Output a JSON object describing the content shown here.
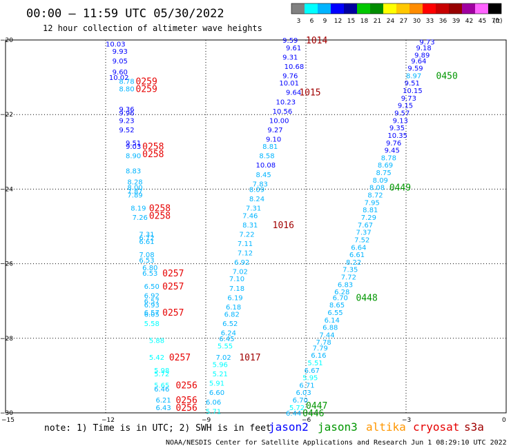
{
  "header": {
    "title": "00:00 — 11:59 UTC 05/30/2022",
    "subtitle": "12 hour collection of altimeter wave heights"
  },
  "colorbar": {
    "labels": [
      "3",
      "6",
      "9",
      "12",
      "15",
      "18",
      "21",
      "24",
      "27",
      "30",
      "33",
      "36",
      "39",
      "42",
      "45",
      "70"
    ],
    "unit": "(ft)",
    "colors": [
      "#808080",
      "#00ffff",
      "#00b4ff",
      "#0000ff",
      "#0000a0",
      "#00c800",
      "#008c00",
      "#ffff00",
      "#ffc800",
      "#ff8c00",
      "#ff0000",
      "#c80000",
      "#960000",
      "#a000a0",
      "#ff64ff",
      "#000000"
    ]
  },
  "note": "note:  1) Time is in UTC; 2) SWH is in feet",
  "legend": [
    {
      "name": "jason2",
      "color": "#0000ff"
    },
    {
      "name": "jason3",
      "color": "#009600"
    },
    {
      "name": "altika",
      "color": "#ff9600"
    },
    {
      "name": "cryosat",
      "color": "#e60000"
    },
    {
      "name": "s3a",
      "color": "#a00000"
    }
  ],
  "credit": "NOAA/NESDIS Center for Satellite Applications and Research   Jun  1 08:29:10 UTC 2022",
  "chart_data": {
    "type": "scatter",
    "xlim": [
      -15,
      0
    ],
    "ylim": [
      -30,
      -20
    ],
    "x_ticks": [
      -15,
      -12,
      -9,
      -6,
      -3,
      0
    ],
    "y_ticks": [
      -20,
      -22,
      -24,
      -26,
      -28,
      -30
    ],
    "x_tick_labels": [
      "−15",
      "−12",
      "−9",
      "−6",
      "−3",
      "0"
    ],
    "y_tick_labels": [
      "−20",
      "−22",
      "−24",
      "−26",
      "−28",
      "−30"
    ],
    "grid": true,
    "wave_heights": [
      {
        "x": -12.0,
        "y": -20.1,
        "label": "10.03",
        "color": "#0000ff"
      },
      {
        "x": -11.8,
        "y": -20.3,
        "label": "9.93",
        "color": "#0000ff"
      },
      {
        "x": -11.8,
        "y": -20.55,
        "label": "9.05",
        "color": "#0000ff"
      },
      {
        "x": -11.8,
        "y": -20.85,
        "label": "9.60",
        "color": "#0000ff"
      },
      {
        "x": -11.9,
        "y": -21.0,
        "label": "10.02",
        "color": "#0000ff"
      },
      {
        "x": -11.6,
        "y": -21.1,
        "label": "8.78",
        "color": "#00b4ff"
      },
      {
        "x": -11.6,
        "y": -21.3,
        "label": "8.80",
        "color": "#00b4ff"
      },
      {
        "x": -11.6,
        "y": -21.85,
        "label": "9.36",
        "color": "#0000ff"
      },
      {
        "x": -11.6,
        "y": -21.95,
        "label": "9.96",
        "color": "#0000ff"
      },
      {
        "x": -11.6,
        "y": -22.15,
        "label": "9.23",
        "color": "#0000ff"
      },
      {
        "x": -11.6,
        "y": -22.4,
        "label": "9.52",
        "color": "#0000ff"
      },
      {
        "x": -11.4,
        "y": -22.75,
        "label": "9.51",
        "color": "#0000ff"
      },
      {
        "x": -11.4,
        "y": -22.85,
        "label": "9.03",
        "color": "#0000ff"
      },
      {
        "x": -11.4,
        "y": -23.1,
        "label": "8.90",
        "color": "#00b4ff"
      },
      {
        "x": -11.4,
        "y": -23.5,
        "label": "8.83",
        "color": "#00b4ff"
      },
      {
        "x": -11.35,
        "y": -23.8,
        "label": "8.28",
        "color": "#00b4ff"
      },
      {
        "x": -11.35,
        "y": -23.95,
        "label": "8.00",
        "color": "#00b4ff"
      },
      {
        "x": -11.35,
        "y": -24.05,
        "label": "7.87",
        "color": "#00b4ff"
      },
      {
        "x": -11.35,
        "y": -24.15,
        "label": "7.89",
        "color": "#00b4ff"
      },
      {
        "x": -11.25,
        "y": -24.5,
        "label": "8.19",
        "color": "#00b4ff"
      },
      {
        "x": -11.2,
        "y": -24.75,
        "label": "7.26",
        "color": "#00b4ff"
      },
      {
        "x": -11.0,
        "y": -25.2,
        "label": "7.31",
        "color": "#00b4ff"
      },
      {
        "x": -11.0,
        "y": -25.3,
        "label": "6.72",
        "color": "#00b4ff"
      },
      {
        "x": -11.0,
        "y": -25.4,
        "label": "6.61",
        "color": "#00b4ff"
      },
      {
        "x": -11.0,
        "y": -25.75,
        "label": "7.08",
        "color": "#00b4ff"
      },
      {
        "x": -11.0,
        "y": -25.9,
        "label": "6.53",
        "color": "#00b4ff"
      },
      {
        "x": -10.9,
        "y": -26.1,
        "label": "6.80",
        "color": "#00b4ff"
      },
      {
        "x": -10.9,
        "y": -26.25,
        "label": "6.53",
        "color": "#00b4ff"
      },
      {
        "x": -10.85,
        "y": -26.6,
        "label": "6.50",
        "color": "#00b4ff"
      },
      {
        "x": -10.85,
        "y": -26.85,
        "label": "6.92",
        "color": "#00b4ff"
      },
      {
        "x": -10.85,
        "y": -27.0,
        "label": "6.57",
        "color": "#00b4ff"
      },
      {
        "x": -10.85,
        "y": -27.1,
        "label": "6.93",
        "color": "#00b4ff"
      },
      {
        "x": -10.85,
        "y": -27.3,
        "label": "6.57",
        "color": "#00b4ff"
      },
      {
        "x": -10.85,
        "y": -27.35,
        "label": "6.05",
        "color": "#00b4ff"
      },
      {
        "x": -10.85,
        "y": -27.6,
        "label": "5.58",
        "color": "#00ffff"
      },
      {
        "x": -10.7,
        "y": -28.05,
        "label": "5.88",
        "color": "#00ffff"
      },
      {
        "x": -10.7,
        "y": -28.5,
        "label": "5.42",
        "color": "#00ffff"
      },
      {
        "x": -10.55,
        "y": -28.85,
        "label": "5.98",
        "color": "#00ffff"
      },
      {
        "x": -10.55,
        "y": -28.95,
        "label": "5.72",
        "color": "#00ffff"
      },
      {
        "x": -10.55,
        "y": -29.25,
        "label": "5.65",
        "color": "#00ffff"
      },
      {
        "x": -10.55,
        "y": -29.35,
        "label": "6.46",
        "color": "#00b4ff"
      },
      {
        "x": -10.5,
        "y": -29.65,
        "label": "6.21",
        "color": "#00b4ff"
      },
      {
        "x": -10.5,
        "y": -29.85,
        "label": "6.43",
        "color": "#00b4ff"
      },
      {
        "x": -6.7,
        "y": -20.0,
        "label": "9.59",
        "color": "#0000ff"
      },
      {
        "x": -6.6,
        "y": -20.2,
        "label": "9.61",
        "color": "#0000ff"
      },
      {
        "x": -6.7,
        "y": -20.45,
        "label": "9.31",
        "color": "#0000ff"
      },
      {
        "x": -6.65,
        "y": -20.7,
        "label": "10.68",
        "color": "#0000ff"
      },
      {
        "x": -6.7,
        "y": -20.95,
        "label": "9.76",
        "color": "#0000ff"
      },
      {
        "x": -6.8,
        "y": -21.15,
        "label": "10.01",
        "color": "#0000ff"
      },
      {
        "x": -6.6,
        "y": -21.4,
        "label": "9.64",
        "color": "#0000ff"
      },
      {
        "x": -6.9,
        "y": -21.65,
        "label": "10.23",
        "color": "#0000ff"
      },
      {
        "x": -7.0,
        "y": -21.9,
        "label": "10.56",
        "color": "#0000ff"
      },
      {
        "x": -7.1,
        "y": -22.15,
        "label": "10.00",
        "color": "#0000ff"
      },
      {
        "x": -7.15,
        "y": -22.4,
        "label": "9.27",
        "color": "#0000ff"
      },
      {
        "x": -7.2,
        "y": -22.65,
        "label": "9.10",
        "color": "#0000ff"
      },
      {
        "x": -7.3,
        "y": -22.85,
        "label": "8.81",
        "color": "#00b4ff"
      },
      {
        "x": -7.4,
        "y": -23.1,
        "label": "8.58",
        "color": "#00b4ff"
      },
      {
        "x": -7.5,
        "y": -23.35,
        "label": "10.08",
        "color": "#0000ff"
      },
      {
        "x": -7.5,
        "y": -23.6,
        "label": "8.45",
        "color": "#00b4ff"
      },
      {
        "x": -7.6,
        "y": -23.85,
        "label": "7.83",
        "color": "#00b4ff"
      },
      {
        "x": -7.7,
        "y": -24.0,
        "label": "8.09",
        "color": "#00b4ff"
      },
      {
        "x": -7.7,
        "y": -24.25,
        "label": "8.24",
        "color": "#00b4ff"
      },
      {
        "x": -7.8,
        "y": -24.5,
        "label": "7.31",
        "color": "#00b4ff"
      },
      {
        "x": -7.9,
        "y": -24.7,
        "label": "7.46",
        "color": "#00b4ff"
      },
      {
        "x": -7.9,
        "y": -24.95,
        "label": "8.31",
        "color": "#00b4ff"
      },
      {
        "x": -8.0,
        "y": -25.2,
        "label": "7.22",
        "color": "#00b4ff"
      },
      {
        "x": -8.05,
        "y": -25.45,
        "label": "7.11",
        "color": "#00b4ff"
      },
      {
        "x": -8.05,
        "y": -25.7,
        "label": "7.12",
        "color": "#00b4ff"
      },
      {
        "x": -8.15,
        "y": -25.95,
        "label": "6.92",
        "color": "#00b4ff"
      },
      {
        "x": -8.2,
        "y": -26.2,
        "label": "7.02",
        "color": "#00b4ff"
      },
      {
        "x": -8.3,
        "y": -26.4,
        "label": "7.10",
        "color": "#00b4ff"
      },
      {
        "x": -8.3,
        "y": -26.65,
        "label": "7.18",
        "color": "#00b4ff"
      },
      {
        "x": -8.35,
        "y": -26.9,
        "label": "6.19",
        "color": "#00b4ff"
      },
      {
        "x": -8.4,
        "y": -27.15,
        "label": "6.18",
        "color": "#00b4ff"
      },
      {
        "x": -8.45,
        "y": -27.35,
        "label": "6.82",
        "color": "#00b4ff"
      },
      {
        "x": -8.5,
        "y": -27.6,
        "label": "6.52",
        "color": "#00b4ff"
      },
      {
        "x": -8.55,
        "y": -27.85,
        "label": "6.24",
        "color": "#00b4ff"
      },
      {
        "x": -8.6,
        "y": -28.0,
        "label": "6.45",
        "color": "#00b4ff"
      },
      {
        "x": -8.65,
        "y": -28.2,
        "label": "5.55",
        "color": "#00ffff"
      },
      {
        "x": -8.7,
        "y": -28.5,
        "label": "7.02",
        "color": "#00b4ff"
      },
      {
        "x": -8.8,
        "y": -28.7,
        "label": "5.96",
        "color": "#00ffff"
      },
      {
        "x": -8.8,
        "y": -28.95,
        "label": "5.21",
        "color": "#00ffff"
      },
      {
        "x": -8.9,
        "y": -29.2,
        "label": "5.91",
        "color": "#00ffff"
      },
      {
        "x": -8.9,
        "y": -29.45,
        "label": "6.60",
        "color": "#00b4ff"
      },
      {
        "x": -9.0,
        "y": -29.7,
        "label": "6.06",
        "color": "#00b4ff"
      },
      {
        "x": -9.0,
        "y": -29.95,
        "label": "5.71",
        "color": "#00ffff"
      },
      {
        "x": -2.6,
        "y": -20.05,
        "label": "9.73",
        "color": "#0000ff"
      },
      {
        "x": -2.7,
        "y": -20.2,
        "label": "9.18",
        "color": "#0000ff"
      },
      {
        "x": -2.75,
        "y": -20.4,
        "label": "9.89",
        "color": "#0000ff"
      },
      {
        "x": -2.85,
        "y": -20.55,
        "label": "9.64",
        "color": "#0000ff"
      },
      {
        "x": -2.95,
        "y": -20.75,
        "label": "9.59",
        "color": "#0000ff"
      },
      {
        "x": -3.0,
        "y": -20.95,
        "label": "8.97",
        "color": "#00b4ff"
      },
      {
        "x": -3.05,
        "y": -21.15,
        "label": "9.51",
        "color": "#0000ff"
      },
      {
        "x": -3.1,
        "y": -21.35,
        "label": "10.15",
        "color": "#0000ff"
      },
      {
        "x": -3.15,
        "y": -21.55,
        "label": "9.73",
        "color": "#0000ff"
      },
      {
        "x": -3.25,
        "y": -21.75,
        "label": "9.15",
        "color": "#0000ff"
      },
      {
        "x": -3.35,
        "y": -21.95,
        "label": "9.57",
        "color": "#0000ff"
      },
      {
        "x": -3.4,
        "y": -22.15,
        "label": "9.13",
        "color": "#0000ff"
      },
      {
        "x": -3.5,
        "y": -22.35,
        "label": "9.35",
        "color": "#0000ff"
      },
      {
        "x": -3.55,
        "y": -22.55,
        "label": "10.35",
        "color": "#0000ff"
      },
      {
        "x": -3.6,
        "y": -22.75,
        "label": "9.76",
        "color": "#0000ff"
      },
      {
        "x": -3.65,
        "y": -22.95,
        "label": "9.45",
        "color": "#0000ff"
      },
      {
        "x": -3.75,
        "y": -23.15,
        "label": "8.78",
        "color": "#00b4ff"
      },
      {
        "x": -3.85,
        "y": -23.35,
        "label": "8.69",
        "color": "#00b4ff"
      },
      {
        "x": -3.9,
        "y": -23.55,
        "label": "8.75",
        "color": "#00b4ff"
      },
      {
        "x": -4.0,
        "y": -23.75,
        "label": "8.09",
        "color": "#00b4ff"
      },
      {
        "x": -4.1,
        "y": -23.95,
        "label": "8.08",
        "color": "#00b4ff"
      },
      {
        "x": -4.15,
        "y": -24.15,
        "label": "8.72",
        "color": "#00b4ff"
      },
      {
        "x": -4.25,
        "y": -24.35,
        "label": "7.95",
        "color": "#00b4ff"
      },
      {
        "x": -4.3,
        "y": -24.55,
        "label": "8.81",
        "color": "#00b4ff"
      },
      {
        "x": -4.35,
        "y": -24.75,
        "label": "7.29",
        "color": "#00b4ff"
      },
      {
        "x": -4.45,
        "y": -24.95,
        "label": "7.67",
        "color": "#00b4ff"
      },
      {
        "x": -4.5,
        "y": -25.15,
        "label": "7.37",
        "color": "#00b4ff"
      },
      {
        "x": -4.55,
        "y": -25.35,
        "label": "7.52",
        "color": "#00b4ff"
      },
      {
        "x": -4.65,
        "y": -25.55,
        "label": "6.64",
        "color": "#00b4ff"
      },
      {
        "x": -4.7,
        "y": -25.75,
        "label": "6.61",
        "color": "#00b4ff"
      },
      {
        "x": -4.8,
        "y": -25.95,
        "label": "8.22",
        "color": "#00b4ff"
      },
      {
        "x": -4.9,
        "y": -26.15,
        "label": "7.35",
        "color": "#00b4ff"
      },
      {
        "x": -4.95,
        "y": -26.35,
        "label": "7.72",
        "color": "#00b4ff"
      },
      {
        "x": -5.05,
        "y": -26.55,
        "label": "6.83",
        "color": "#00b4ff"
      },
      {
        "x": -5.15,
        "y": -26.75,
        "label": "6.28",
        "color": "#00b4ff"
      },
      {
        "x": -5.2,
        "y": -26.9,
        "label": "6.70",
        "color": "#00b4ff"
      },
      {
        "x": -5.3,
        "y": -27.1,
        "label": "8.65",
        "color": "#00b4ff"
      },
      {
        "x": -5.35,
        "y": -27.3,
        "label": "6.55",
        "color": "#00b4ff"
      },
      {
        "x": -5.45,
        "y": -27.5,
        "label": "6.14",
        "color": "#00b4ff"
      },
      {
        "x": -5.5,
        "y": -27.7,
        "label": "6.88",
        "color": "#00b4ff"
      },
      {
        "x": -5.6,
        "y": -27.9,
        "label": "7.44",
        "color": "#00b4ff"
      },
      {
        "x": -5.7,
        "y": -28.1,
        "label": "7.78",
        "color": "#00b4ff"
      },
      {
        "x": -5.8,
        "y": -28.25,
        "label": "7.79",
        "color": "#00b4ff"
      },
      {
        "x": -5.85,
        "y": -28.45,
        "label": "6.16",
        "color": "#00b4ff"
      },
      {
        "x": -5.95,
        "y": -28.65,
        "label": "5.51",
        "color": "#00ffff"
      },
      {
        "x": -6.05,
        "y": -28.85,
        "label": "6.67",
        "color": "#00b4ff"
      },
      {
        "x": -6.1,
        "y": -29.05,
        "label": "5.95",
        "color": "#00ffff"
      },
      {
        "x": -6.2,
        "y": -29.25,
        "label": "6.71",
        "color": "#00b4ff"
      },
      {
        "x": -6.3,
        "y": -29.45,
        "label": "6.03",
        "color": "#00b4ff"
      },
      {
        "x": -6.4,
        "y": -29.65,
        "label": "6.70",
        "color": "#00b4ff"
      },
      {
        "x": -6.5,
        "y": -29.85,
        "label": "5.72",
        "color": "#00ffff"
      },
      {
        "x": -6.6,
        "y": -30.0,
        "label": "6.44",
        "color": "#00b4ff"
      }
    ],
    "pass_times": [
      {
        "x": -11.1,
        "y": -21.1,
        "label": "0259",
        "color": "#e60000"
      },
      {
        "x": -11.1,
        "y": -21.3,
        "label": "0259",
        "color": "#e60000"
      },
      {
        "x": -10.9,
        "y": -22.85,
        "label": "0258",
        "color": "#e60000"
      },
      {
        "x": -10.9,
        "y": -23.05,
        "label": "0258",
        "color": "#e60000"
      },
      {
        "x": -10.7,
        "y": -24.5,
        "label": "0258",
        "color": "#e60000"
      },
      {
        "x": -10.7,
        "y": -24.7,
        "label": "0258",
        "color": "#e60000"
      },
      {
        "x": -10.3,
        "y": -26.25,
        "label": "0257",
        "color": "#e60000"
      },
      {
        "x": -10.3,
        "y": -26.6,
        "label": "0257",
        "color": "#e60000"
      },
      {
        "x": -10.3,
        "y": -27.3,
        "label": "0257",
        "color": "#e60000"
      },
      {
        "x": -10.1,
        "y": -28.5,
        "label": "0257",
        "color": "#e60000"
      },
      {
        "x": -9.9,
        "y": -29.25,
        "label": "0256",
        "color": "#e60000"
      },
      {
        "x": -9.9,
        "y": -29.65,
        "label": "0256",
        "color": "#e60000"
      },
      {
        "x": -9.9,
        "y": -29.85,
        "label": "0256",
        "color": "#e60000"
      },
      {
        "x": -6.0,
        "y": -20.0,
        "label": "1014",
        "color": "#a00000"
      },
      {
        "x": -6.2,
        "y": -21.4,
        "label": "1015",
        "color": "#a00000"
      },
      {
        "x": -7.0,
        "y": -24.95,
        "label": "1016",
        "color": "#a00000"
      },
      {
        "x": -8.0,
        "y": -28.5,
        "label": "1017",
        "color": "#a00000"
      },
      {
        "x": -2.1,
        "y": -20.95,
        "label": "0450",
        "color": "#009600"
      },
      {
        "x": -3.5,
        "y": -23.95,
        "label": "0449",
        "color": "#009600"
      },
      {
        "x": -4.5,
        "y": -26.9,
        "label": "0448",
        "color": "#009600"
      },
      {
        "x": -6.0,
        "y": -29.8,
        "label": "0447",
        "color": "#009600"
      },
      {
        "x": -6.1,
        "y": -30.0,
        "label": "0446",
        "color": "#009600"
      }
    ]
  }
}
